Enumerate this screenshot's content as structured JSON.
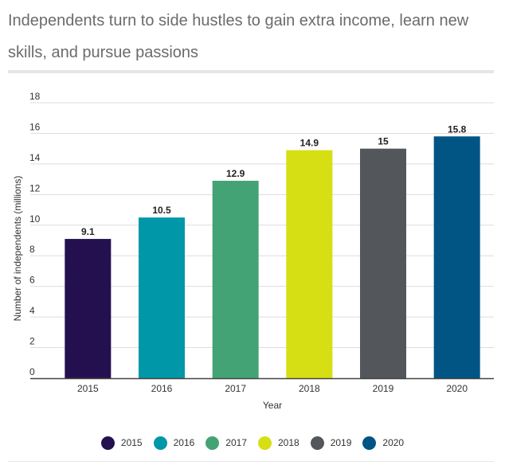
{
  "chart_data": {
    "type": "bar",
    "title": "Independents turn to side hustles to gain extra income, learn new skills, and pursue passions",
    "categories": [
      "2015",
      "2016",
      "2017",
      "2018",
      "2019",
      "2020"
    ],
    "values": [
      9.1,
      10.5,
      12.9,
      14.9,
      15,
      15.8
    ],
    "value_labels": [
      "9.1",
      "10.5",
      "12.9",
      "14.9",
      "15",
      "15.8"
    ],
    "colors": [
      "#24104f",
      "#0097a9",
      "#43a374",
      "#d6df14",
      "#53565a",
      "#005584"
    ],
    "xlabel": "Year",
    "ylabel": "Number of independents (millions)",
    "ylim": [
      0,
      18
    ],
    "yticks": [
      0,
      2,
      4,
      6,
      8,
      10,
      12,
      14,
      16,
      18
    ],
    "grid": true,
    "legend": {
      "position": "bottom",
      "items": [
        "2015",
        "2016",
        "2017",
        "2018",
        "2019",
        "2020"
      ]
    }
  }
}
